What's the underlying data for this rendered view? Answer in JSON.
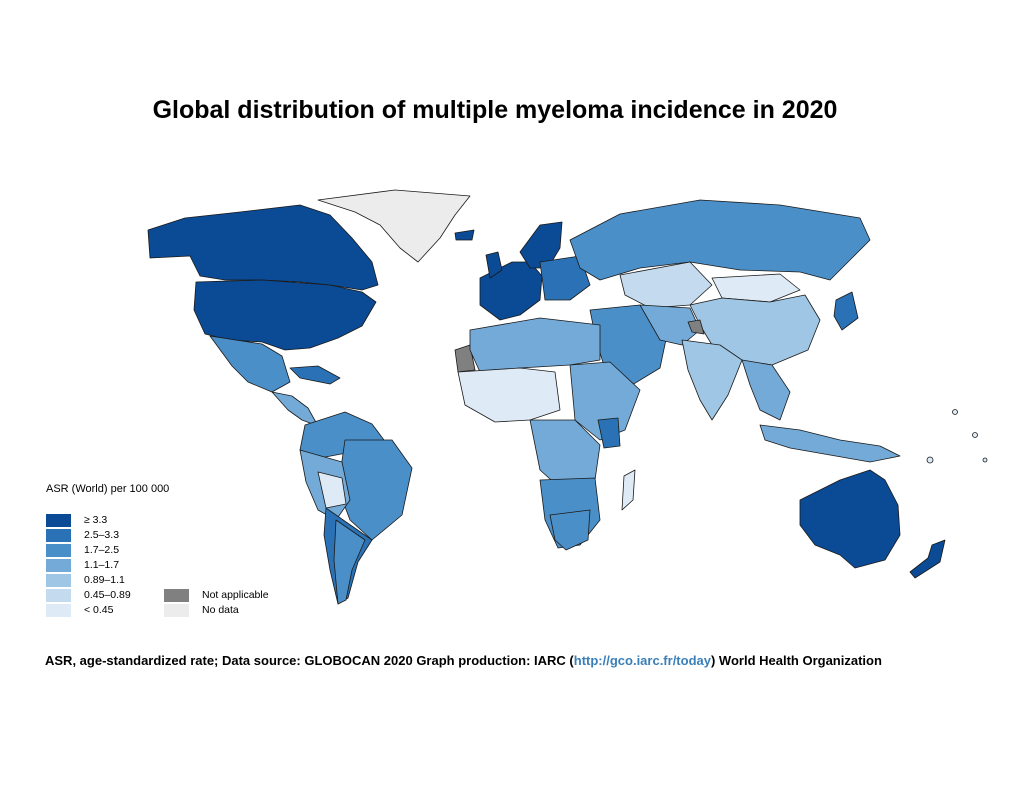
{
  "title": "Global distribution of multiple myeloma incidence in 2020",
  "legend": {
    "title": "ASR (World) per 100 000",
    "bins": [
      {
        "label": "≥ 3.3",
        "color": "#0b4a94"
      },
      {
        "label": "2.5–3.3",
        "color": "#2a72b5"
      },
      {
        "label": "1.7–2.5",
        "color": "#4b8fc8"
      },
      {
        "label": "1.1–1.7",
        "color": "#74aad7"
      },
      {
        "label": "0.89–1.1",
        "color": "#9fc6e4"
      },
      {
        "label": "0.45–0.89",
        "color": "#c4dbef"
      },
      {
        "label": "< 0.45",
        "color": "#deebf7"
      }
    ],
    "extra": [
      {
        "label": "Not applicable",
        "color": "#808080"
      },
      {
        "label": "No data",
        "color": "#ececec"
      }
    ]
  },
  "footer": {
    "prefix": "ASR, age-standardized rate; Data source: GLOBOCAN 2020 Graph production: IARC (",
    "link": "http://gco.iarc.fr/today",
    "suffix": ") World Health Organization"
  }
}
